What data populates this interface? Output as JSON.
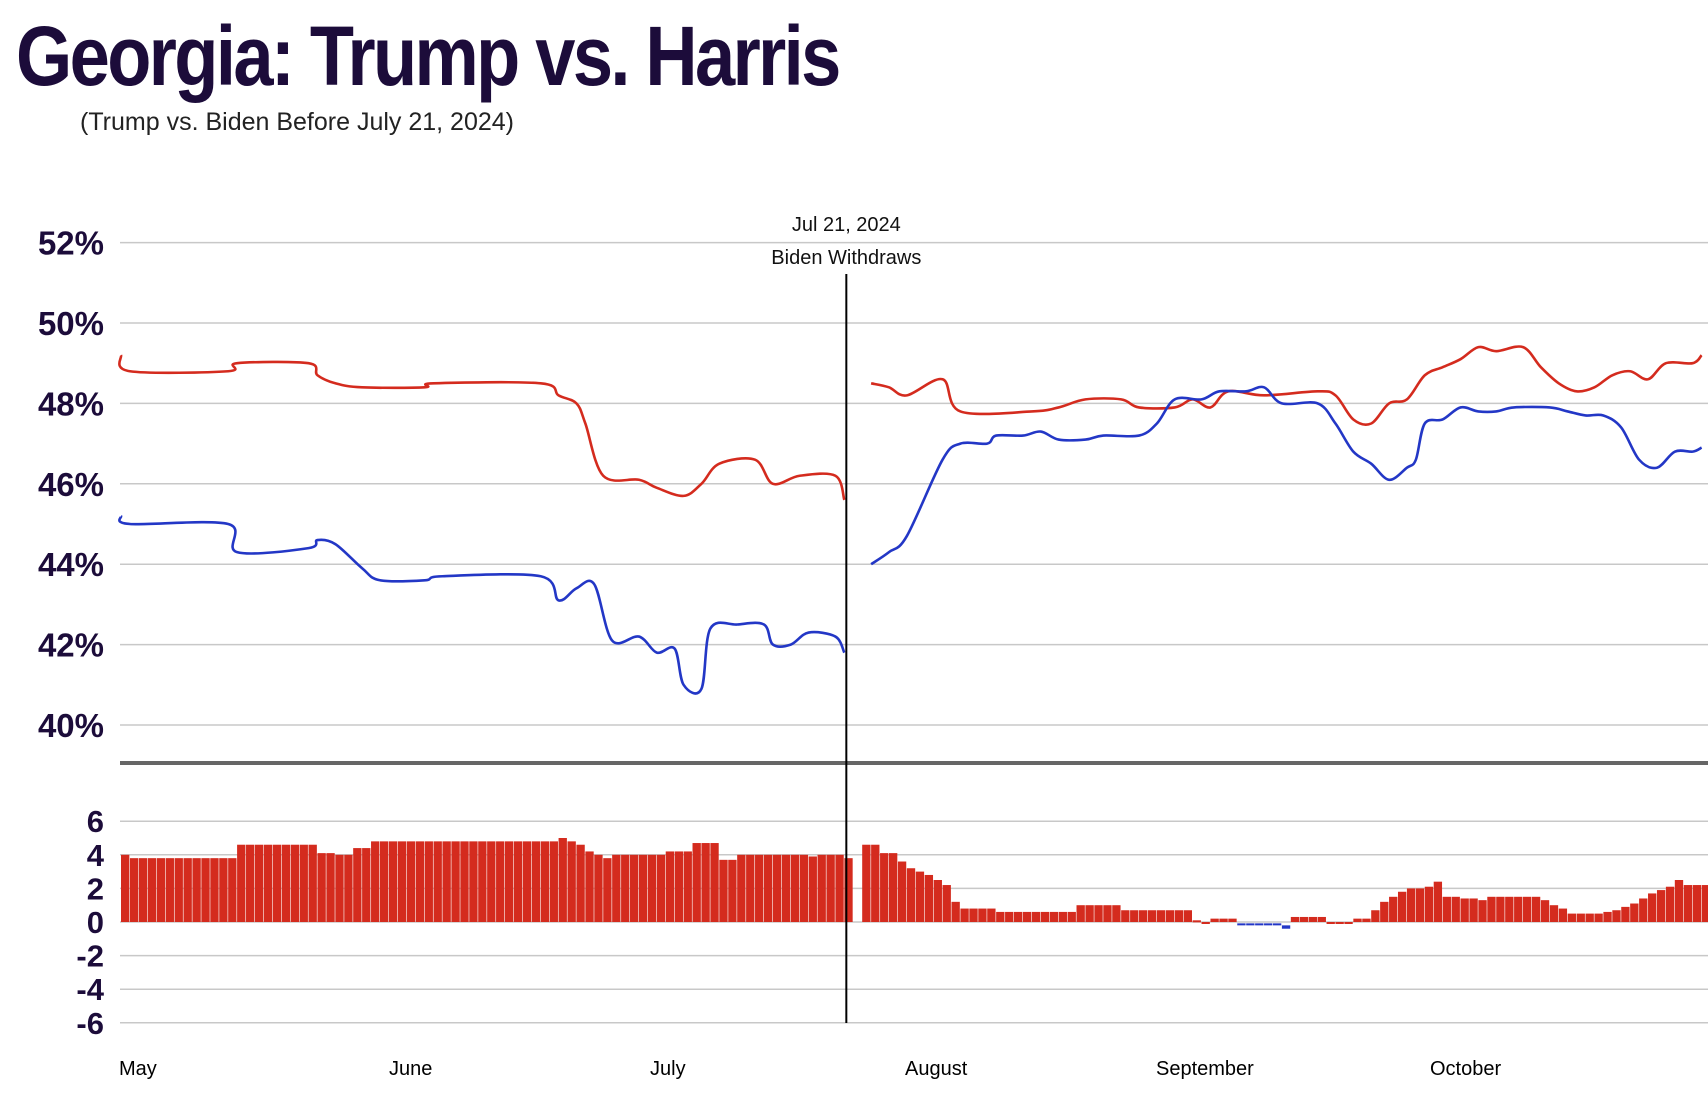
{
  "title": "Georgia: Trump vs. Harris",
  "subtitle": "(Trump vs. Biden Before July 21, 2024)",
  "colors": {
    "trump": "#d42b1e",
    "dem": "#2337c6",
    "grid": "#c8c8c8",
    "axis": "#666666",
    "text": "#1c0c3a"
  },
  "chart_data": [
    {
      "type": "line",
      "ylim": [
        39,
        53
      ],
      "yticks": [
        "52%",
        "50%",
        "48%",
        "46%",
        "44%",
        "42%",
        "40%"
      ],
      "ytick_values": [
        52,
        50,
        48,
        46,
        44,
        42,
        40
      ],
      "x_months": [
        "May",
        "June",
        "July",
        "August",
        "September",
        "October"
      ],
      "annotation": {
        "x": 81,
        "date_label": "Jul 21, 2024",
        "event_label": "Biden Withdraws"
      },
      "series": [
        {
          "key": "trump",
          "segments": [
            [
              [
                0,
                49.2
              ],
              [
                1,
                48.8
              ],
              [
                12,
                48.8
              ],
              [
                13,
                49.0
              ],
              [
                21,
                49.0
              ],
              [
                22,
                48.7
              ],
              [
                24,
                48.5
              ],
              [
                27,
                48.4
              ],
              [
                34,
                48.4
              ],
              [
                35,
                48.5
              ],
              [
                47,
                48.5
              ],
              [
                49,
                48.2
              ],
              [
                51,
                48.0
              ],
              [
                52,
                47.5
              ],
              [
                54,
                46.2
              ],
              [
                58,
                46.1
              ],
              [
                60,
                45.9
              ],
              [
                63,
                45.7
              ],
              [
                65,
                46.0
              ],
              [
                67,
                46.5
              ],
              [
                71,
                46.6
              ],
              [
                73,
                46.0
              ],
              [
                76,
                46.2
              ],
              [
                80,
                46.2
              ],
              [
                81,
                45.6
              ]
            ],
            [
              [
                84,
                48.5
              ],
              [
                86,
                48.4
              ],
              [
                88,
                48.2
              ],
              [
                92,
                48.6
              ],
              [
                94,
                47.8
              ],
              [
                102,
                47.8
              ],
              [
                105,
                47.9
              ],
              [
                108,
                48.1
              ],
              [
                112,
                48.1
              ],
              [
                114,
                47.9
              ],
              [
                118,
                47.9
              ],
              [
                120,
                48.1
              ],
              [
                122,
                47.9
              ],
              [
                124,
                48.3
              ],
              [
                128,
                48.2
              ],
              [
                134,
                48.3
              ],
              [
                136,
                48.2
              ],
              [
                138,
                47.6
              ],
              [
                140,
                47.5
              ],
              [
                142,
                48.0
              ],
              [
                144,
                48.1
              ],
              [
                146,
                48.7
              ],
              [
                148,
                48.9
              ],
              [
                150,
                49.1
              ],
              [
                152,
                49.4
              ],
              [
                154,
                49.3
              ],
              [
                157,
                49.4
              ],
              [
                159,
                48.9
              ],
              [
                161,
                48.5
              ],
              [
                163,
                48.3
              ],
              [
                165,
                48.4
              ],
              [
                167,
                48.7
              ],
              [
                169,
                48.8
              ],
              [
                171,
                48.6
              ],
              [
                173,
                49.0
              ],
              [
                176,
                49.0
              ],
              [
                177,
                49.2
              ]
            ]
          ]
        },
        {
          "key": "dem",
          "segments": [
            [
              [
                0,
                45.2
              ],
              [
                1,
                45.0
              ],
              [
                12,
                45.0
              ],
              [
                13,
                44.3
              ],
              [
                21,
                44.4
              ],
              [
                22,
                44.6
              ],
              [
                24,
                44.5
              ],
              [
                27,
                43.9
              ],
              [
                29,
                43.6
              ],
              [
                34,
                43.6
              ],
              [
                36,
                43.7
              ],
              [
                47,
                43.7
              ],
              [
                49,
                43.1
              ],
              [
                51,
                43.4
              ],
              [
                53,
                43.5
              ],
              [
                55,
                42.1
              ],
              [
                58,
                42.2
              ],
              [
                60,
                41.8
              ],
              [
                62,
                41.9
              ],
              [
                63,
                41.0
              ],
              [
                65,
                40.9
              ],
              [
                66,
                42.4
              ],
              [
                69,
                42.5
              ],
              [
                72,
                42.5
              ],
              [
                73,
                42.0
              ],
              [
                75,
                42.0
              ],
              [
                77,
                42.3
              ],
              [
                80,
                42.2
              ],
              [
                81,
                41.8
              ]
            ],
            [
              [
                84,
                44.0
              ],
              [
                86,
                44.3
              ],
              [
                88,
                44.7
              ],
              [
                92,
                46.6
              ],
              [
                94,
                47.0
              ],
              [
                97,
                47.0
              ],
              [
                98,
                47.2
              ],
              [
                101,
                47.2
              ],
              [
                103,
                47.3
              ],
              [
                105,
                47.1
              ],
              [
                108,
                47.1
              ],
              [
                110,
                47.2
              ],
              [
                114,
                47.2
              ],
              [
                116,
                47.5
              ],
              [
                118,
                48.1
              ],
              [
                121,
                48.1
              ],
              [
                123,
                48.3
              ],
              [
                126,
                48.3
              ],
              [
                128,
                48.4
              ],
              [
                130,
                48.0
              ],
              [
                134,
                48.0
              ],
              [
                136,
                47.5
              ],
              [
                138,
                46.8
              ],
              [
                140,
                46.5
              ],
              [
                142,
                46.1
              ],
              [
                144,
                46.4
              ],
              [
                145,
                46.6
              ],
              [
                146,
                47.5
              ],
              [
                148,
                47.6
              ],
              [
                150,
                47.9
              ],
              [
                152,
                47.8
              ],
              [
                154,
                47.8
              ],
              [
                156,
                47.9
              ],
              [
                160,
                47.9
              ],
              [
                162,
                47.8
              ],
              [
                164,
                47.7
              ],
              [
                166,
                47.7
              ],
              [
                168,
                47.4
              ],
              [
                170,
                46.6
              ],
              [
                172,
                46.4
              ],
              [
                174,
                46.8
              ],
              [
                176,
                46.8
              ],
              [
                177,
                46.9
              ]
            ]
          ]
        }
      ]
    },
    {
      "type": "bar",
      "ylim": [
        -7,
        7
      ],
      "yticks": [
        "6",
        "4",
        "2",
        "0",
        "-2",
        "-4",
        "-6"
      ],
      "ytick_values": [
        6,
        4,
        2,
        0,
        -2,
        -4,
        -6
      ],
      "x_start": 0,
      "values": [
        4.0,
        3.8,
        3.8,
        3.8,
        3.8,
        3.8,
        3.8,
        3.8,
        3.8,
        3.8,
        3.8,
        3.8,
        3.8,
        4.6,
        4.6,
        4.6,
        4.6,
        4.6,
        4.6,
        4.6,
        4.6,
        4.6,
        4.1,
        4.1,
        4.0,
        4.0,
        4.4,
        4.4,
        4.8,
        4.8,
        4.8,
        4.8,
        4.8,
        4.8,
        4.8,
        4.8,
        4.8,
        4.8,
        4.8,
        4.8,
        4.8,
        4.8,
        4.8,
        4.8,
        4.8,
        4.8,
        4.8,
        4.8,
        4.8,
        5.0,
        4.8,
        4.6,
        4.2,
        4.0,
        3.8,
        4.0,
        4.0,
        4.0,
        4.0,
        4.0,
        4.0,
        4.2,
        4.2,
        4.2,
        4.7,
        4.7,
        4.7,
        3.7,
        3.7,
        4.0,
        4.0,
        4.0,
        4.0,
        4.0,
        4.0,
        4.0,
        4.0,
        3.9,
        4.0,
        4.0,
        4.0,
        3.8,
        null,
        4.6,
        4.6,
        4.1,
        4.1,
        3.6,
        3.2,
        3.0,
        2.8,
        2.5,
        2.2,
        1.2,
        0.8,
        0.8,
        0.8,
        0.8,
        0.6,
        0.6,
        0.6,
        0.6,
        0.6,
        0.6,
        0.6,
        0.6,
        0.6,
        1.0,
        1.0,
        1.0,
        1.0,
        1.0,
        0.7,
        0.7,
        0.7,
        0.7,
        0.7,
        0.7,
        0.7,
        0.7,
        0.1,
        0.0,
        0.2,
        0.2,
        0.2,
        -0.1,
        -0.1,
        -0.1,
        -0.1,
        -0.1,
        -0.2,
        0.3,
        0.3,
        0.3,
        0.3,
        0.0,
        0.0,
        0.0,
        0.2,
        0.2,
        0.7,
        1.2,
        1.5,
        1.8,
        2.0,
        2.0,
        2.1,
        2.4,
        1.5,
        1.5,
        1.4,
        1.4,
        1.3,
        1.5,
        1.5,
        1.5,
        1.5,
        1.5,
        1.5,
        1.3,
        1.0,
        0.8,
        0.5,
        0.5,
        0.5,
        0.5,
        0.6,
        0.7,
        0.9,
        1.1,
        1.4,
        1.7,
        1.9,
        2.1,
        2.5,
        2.2,
        2.2,
        2.2,
        2.2,
        2.3
      ]
    }
  ]
}
